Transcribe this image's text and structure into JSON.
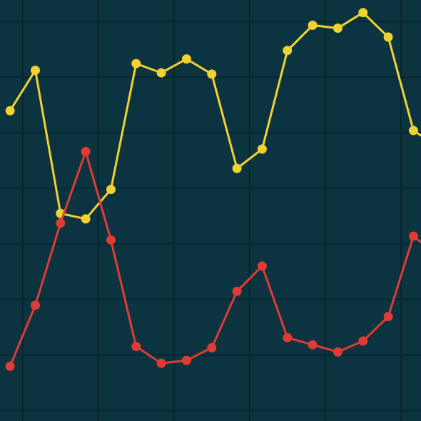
{
  "chart_data": {
    "type": "line",
    "title": "",
    "xlabel": "",
    "ylabel": "",
    "grid": true,
    "background": "#0b3440",
    "grid_color": "#06252f",
    "x": [
      0,
      1,
      2,
      3,
      4,
      5,
      6,
      7,
      8,
      9,
      10,
      11,
      12,
      13,
      14,
      15,
      16,
      17
    ],
    "xlim": [
      -0.4,
      16.3
    ],
    "ylim": [
      0,
      10
    ],
    "series": [
      {
        "color": "#f2d230",
        "values": [
          7.37,
          8.33,
          4.93,
          4.8,
          5.5,
          8.49,
          8.27,
          8.6,
          8.24,
          6.0,
          6.46,
          8.8,
          9.4,
          9.33,
          9.7,
          9.12,
          6.9,
          6.5
        ]
      },
      {
        "color": "#e23a35",
        "values": [
          1.3,
          2.75,
          4.7,
          6.4,
          4.3,
          1.77,
          1.37,
          1.44,
          1.74,
          3.08,
          3.68,
          1.98,
          1.81,
          1.64,
          1.9,
          2.48,
          4.39,
          3.9
        ]
      }
    ]
  }
}
